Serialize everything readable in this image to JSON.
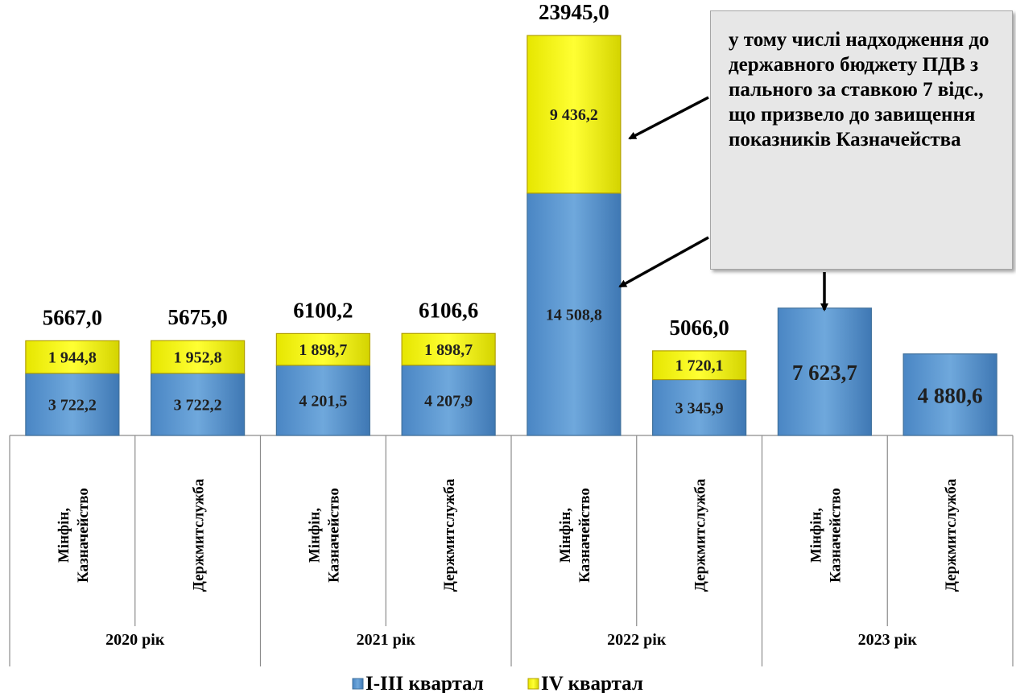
{
  "chart_data": {
    "type": "bar",
    "stacked": true,
    "groups": [
      "2020 рік",
      "2021 рік",
      "2022 рік",
      "2023 рік"
    ],
    "categories": [
      "Мінфін, Казначейство",
      "Держмитслужба",
      "Мінфін, Казначейство",
      "Держмитслужба",
      "Мінфін, Казначейство",
      "Держмитслужба",
      "Мінфін, Казначейство",
      "Держмитслужба"
    ],
    "series": [
      {
        "name": "І-ІІІ квартал",
        "color": "#5b9bd5",
        "values": [
          3722.2,
          3722.2,
          4201.5,
          4207.9,
          14508.8,
          3345.9,
          7623.7,
          4880.6
        ],
        "labels": [
          "3 722,2",
          "3 722,2",
          "4 201,5",
          "4 207,9",
          "14 508,8",
          "3 345,9",
          "7 623,7",
          "4 880,6"
        ]
      },
      {
        "name": "IV квартал",
        "color": "#ffff00",
        "values": [
          1944.8,
          1952.8,
          1898.7,
          1898.7,
          9436.2,
          1720.1,
          null,
          null
        ],
        "labels": [
          "1 944,8",
          "1 952,8",
          "1 898,7",
          "1 898,7",
          "9 436,2",
          "1 720,1",
          "",
          ""
        ]
      }
    ],
    "totals": [
      "5667,0",
      "5675,0",
      "6100,2",
      "6106,6",
      "23945,0",
      "5066,0",
      "",
      ""
    ],
    "callout": "у тому числі надходження до державного бюджету ПДВ з пального за ставкою 7 відс., що призвело до завищення показників Казначейства",
    "legend_position": "bottom",
    "grid": false
  }
}
